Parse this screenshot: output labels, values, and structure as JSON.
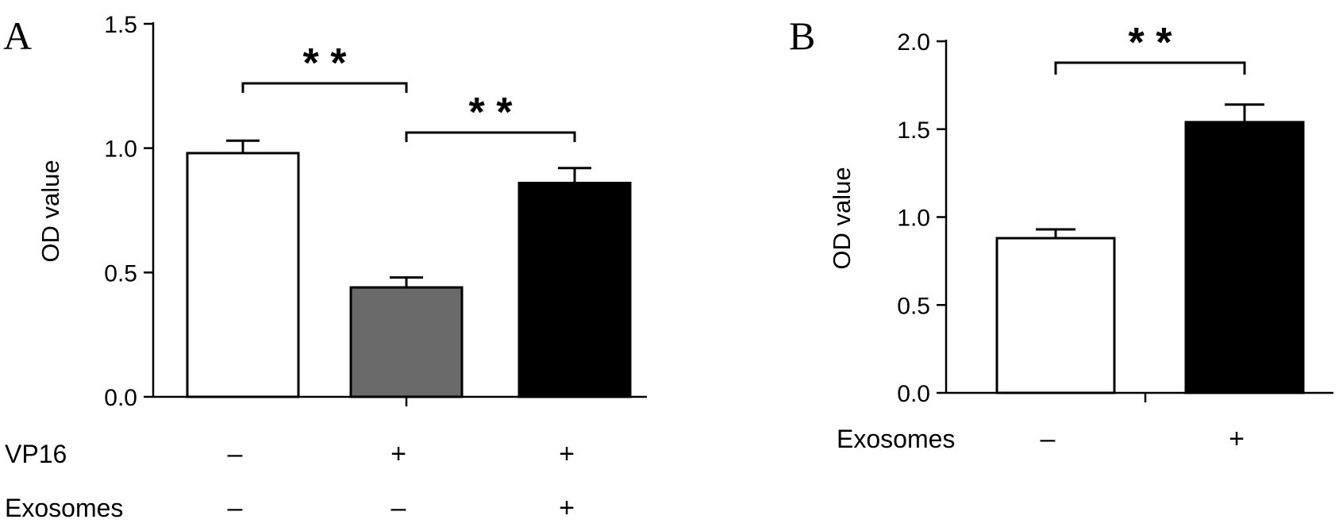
{
  "chart_data": [
    {
      "panel": "A",
      "type": "bar",
      "ylabel": "OD value",
      "ylim": [
        0,
        1.5
      ],
      "yticks": [
        "0.0",
        "0.5",
        "1.0",
        "1.5"
      ],
      "bars": [
        {
          "value": 0.98,
          "error": 0.05,
          "color": "#ffffff"
        },
        {
          "value": 0.44,
          "error": 0.04,
          "color": "#6a6a6a"
        },
        {
          "value": 0.86,
          "error": 0.06,
          "color": "#000000"
        }
      ],
      "condition_rows": [
        {
          "label": "VP16",
          "marks": [
            "–",
            "+",
            "+"
          ]
        },
        {
          "label": "Exosomes",
          "marks": [
            "–",
            "–",
            "+"
          ]
        }
      ],
      "significance": [
        {
          "from": 0,
          "to": 1,
          "label": "* *"
        },
        {
          "from": 1,
          "to": 2,
          "label": "* *"
        }
      ]
    },
    {
      "panel": "B",
      "type": "bar",
      "ylabel": "OD value",
      "ylim": [
        0,
        2.0
      ],
      "yticks": [
        "0.0",
        "0.5",
        "1.0",
        "1.5",
        "2.0"
      ],
      "bars": [
        {
          "value": 0.88,
          "error": 0.05,
          "color": "#ffffff"
        },
        {
          "value": 1.54,
          "error": 0.1,
          "color": "#000000"
        }
      ],
      "condition_rows": [
        {
          "label": "Exosomes",
          "marks": [
            "–",
            "+"
          ]
        }
      ],
      "significance": [
        {
          "from": 0,
          "to": 1,
          "label": "* *"
        }
      ]
    }
  ]
}
